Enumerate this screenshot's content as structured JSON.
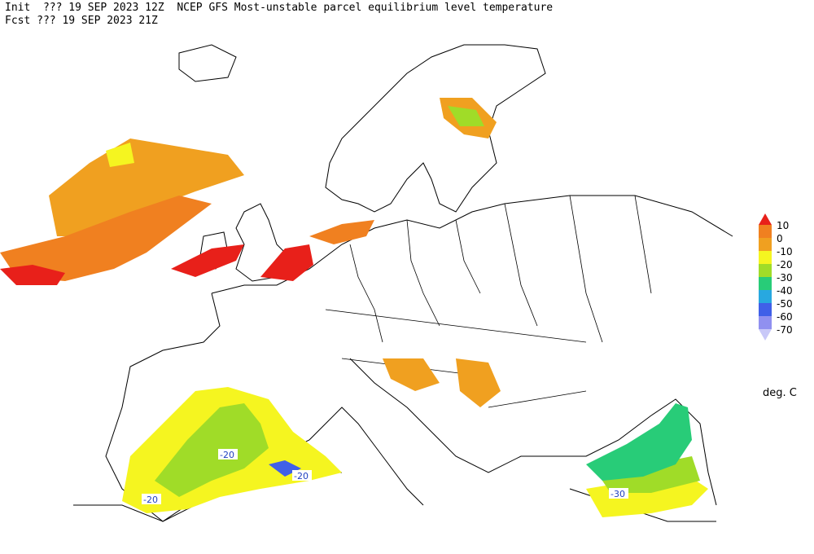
{
  "header": {
    "line1": "Init  ??? 19 SEP 2023 12Z  NCEP GFS Most-unstable parcel equilibrium level temperature",
    "line2": "Fcst ??? 19 SEP 2023 21Z"
  },
  "legend": {
    "units": "deg. C",
    "items": [
      {
        "label": "10",
        "color": "#e8201a"
      },
      {
        "label": "0",
        "color": "#f0a020"
      },
      {
        "label": "-10",
        "color": "#f5f520"
      },
      {
        "label": "-20",
        "color": "#a0dc28"
      },
      {
        "label": "-30",
        "color": "#28cc78"
      },
      {
        "label": "-40",
        "color": "#28a8e0"
      },
      {
        "label": "-50",
        "color": "#4060e8"
      },
      {
        "label": "-60",
        "color": "#9090f0"
      },
      {
        "label": "-70",
        "color": "#c8c8f8"
      }
    ]
  },
  "contour_labels": [
    {
      "text": "-20"
    },
    {
      "text": "-20"
    },
    {
      "text": "-20"
    },
    {
      "text": "-30"
    }
  ]
}
